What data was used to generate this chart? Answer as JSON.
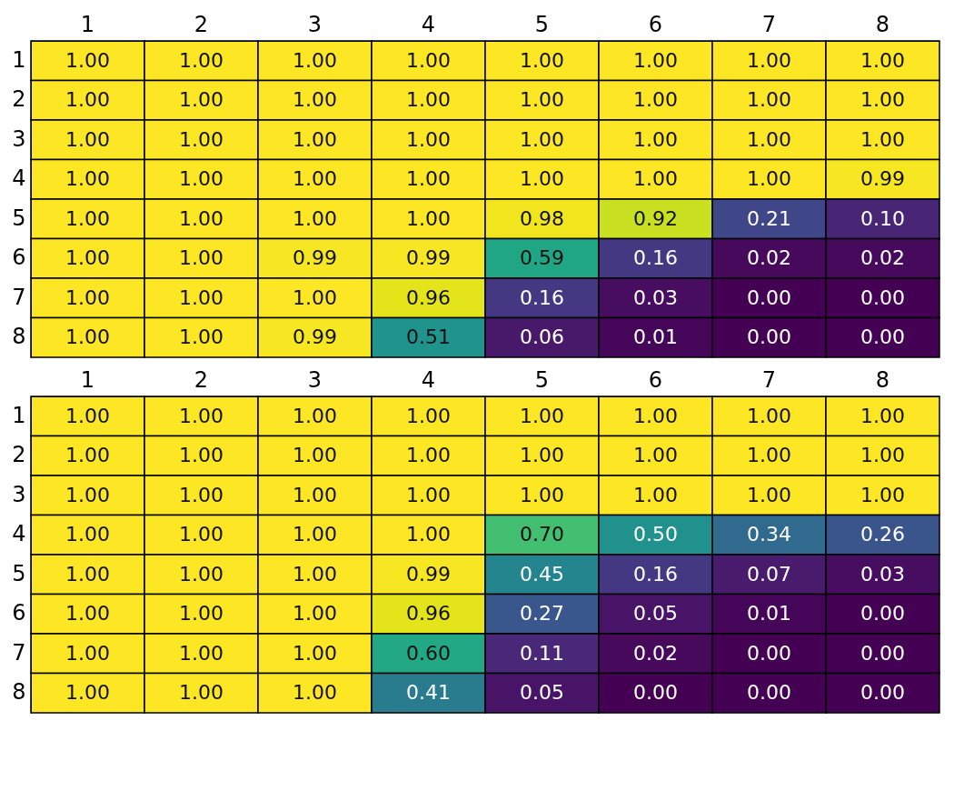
{
  "chart_data": [
    {
      "type": "heatmap",
      "categories": [
        "1",
        "2",
        "3",
        "4",
        "5",
        "6",
        "7",
        "8"
      ],
      "y_categories": [
        "1",
        "2",
        "3",
        "4",
        "5",
        "6",
        "7",
        "8"
      ],
      "cells": [
        [
          1.0,
          1.0,
          1.0,
          1.0,
          1.0,
          1.0,
          1.0,
          1.0
        ],
        [
          1.0,
          1.0,
          1.0,
          1.0,
          1.0,
          1.0,
          1.0,
          1.0
        ],
        [
          1.0,
          1.0,
          1.0,
          1.0,
          1.0,
          1.0,
          1.0,
          1.0
        ],
        [
          1.0,
          1.0,
          1.0,
          1.0,
          1.0,
          1.0,
          1.0,
          0.99
        ],
        [
          1.0,
          1.0,
          1.0,
          1.0,
          0.98,
          0.92,
          0.21,
          0.1
        ],
        [
          1.0,
          1.0,
          0.99,
          0.99,
          0.59,
          0.16,
          0.02,
          0.02
        ],
        [
          1.0,
          1.0,
          1.0,
          0.96,
          0.16,
          0.03,
          0.0,
          0.0
        ],
        [
          1.0,
          1.0,
          0.99,
          0.51,
          0.06,
          0.01,
          0.0,
          0.0
        ]
      ],
      "cell_labels": [
        [
          "1.00",
          "1.00",
          "1.00",
          "1.00",
          "1.00",
          "1.00",
          "1.00",
          "1.00"
        ],
        [
          "1.00",
          "1.00",
          "1.00",
          "1.00",
          "1.00",
          "1.00",
          "1.00",
          "1.00"
        ],
        [
          "1.00",
          "1.00",
          "1.00",
          "1.00",
          "1.00",
          "1.00",
          "1.00",
          "1.00"
        ],
        [
          "1.00",
          "1.00",
          "1.00",
          "1.00",
          "1.00",
          "1.00",
          "1.00",
          "0.99"
        ],
        [
          "1.00",
          "1.00",
          "1.00",
          "1.00",
          "0.98",
          "0.92",
          "0.21",
          "0.10"
        ],
        [
          "1.00",
          "1.00",
          "0.99",
          "0.99",
          "0.59",
          "0.16",
          "0.02",
          "0.02"
        ],
        [
          "1.00",
          "1.00",
          "1.00",
          "0.96",
          "0.16",
          "0.03",
          "0.00",
          "0.00"
        ],
        [
          "1.00",
          "1.00",
          "0.99",
          "0.51",
          "0.06",
          "0.01",
          "0.00",
          "0.00"
        ]
      ]
    },
    {
      "type": "heatmap",
      "categories": [
        "1",
        "2",
        "3",
        "4",
        "5",
        "6",
        "7",
        "8"
      ],
      "y_categories": [
        "1",
        "2",
        "3",
        "4",
        "5",
        "6",
        "7",
        "8"
      ],
      "cells": [
        [
          1.0,
          1.0,
          1.0,
          1.0,
          1.0,
          1.0,
          1.0,
          1.0
        ],
        [
          1.0,
          1.0,
          1.0,
          1.0,
          1.0,
          1.0,
          1.0,
          1.0
        ],
        [
          1.0,
          1.0,
          1.0,
          1.0,
          1.0,
          1.0,
          1.0,
          1.0
        ],
        [
          1.0,
          1.0,
          1.0,
          1.0,
          0.7,
          0.5,
          0.34,
          0.26
        ],
        [
          1.0,
          1.0,
          1.0,
          0.99,
          0.45,
          0.16,
          0.07,
          0.03
        ],
        [
          1.0,
          1.0,
          1.0,
          0.96,
          0.27,
          0.05,
          0.01,
          0.0
        ],
        [
          1.0,
          1.0,
          1.0,
          0.6,
          0.11,
          0.02,
          0.0,
          0.0
        ],
        [
          1.0,
          1.0,
          1.0,
          0.41,
          0.05,
          0.0,
          0.0,
          0.0
        ]
      ],
      "cell_labels": [
        [
          "1.00",
          "1.00",
          "1.00",
          "1.00",
          "1.00",
          "1.00",
          "1.00",
          "1.00"
        ],
        [
          "1.00",
          "1.00",
          "1.00",
          "1.00",
          "1.00",
          "1.00",
          "1.00",
          "1.00"
        ],
        [
          "1.00",
          "1.00",
          "1.00",
          "1.00",
          "1.00",
          "1.00",
          "1.00",
          "1.00"
        ],
        [
          "1.00",
          "1.00",
          "1.00",
          "1.00",
          "0.70",
          "0.50",
          "0.34",
          "0.26"
        ],
        [
          "1.00",
          "1.00",
          "1.00",
          "0.99",
          "0.45",
          "0.16",
          "0.07",
          "0.03"
        ],
        [
          "1.00",
          "1.00",
          "1.00",
          "0.96",
          "0.27",
          "0.05",
          "0.01",
          "0.00"
        ],
        [
          "1.00",
          "1.00",
          "1.00",
          "0.60",
          "0.11",
          "0.02",
          "0.00",
          "0.00"
        ],
        [
          "1.00",
          "1.00",
          "1.00",
          "0.41",
          "0.05",
          "0.00",
          "0.00",
          "0.00"
        ]
      ]
    }
  ]
}
